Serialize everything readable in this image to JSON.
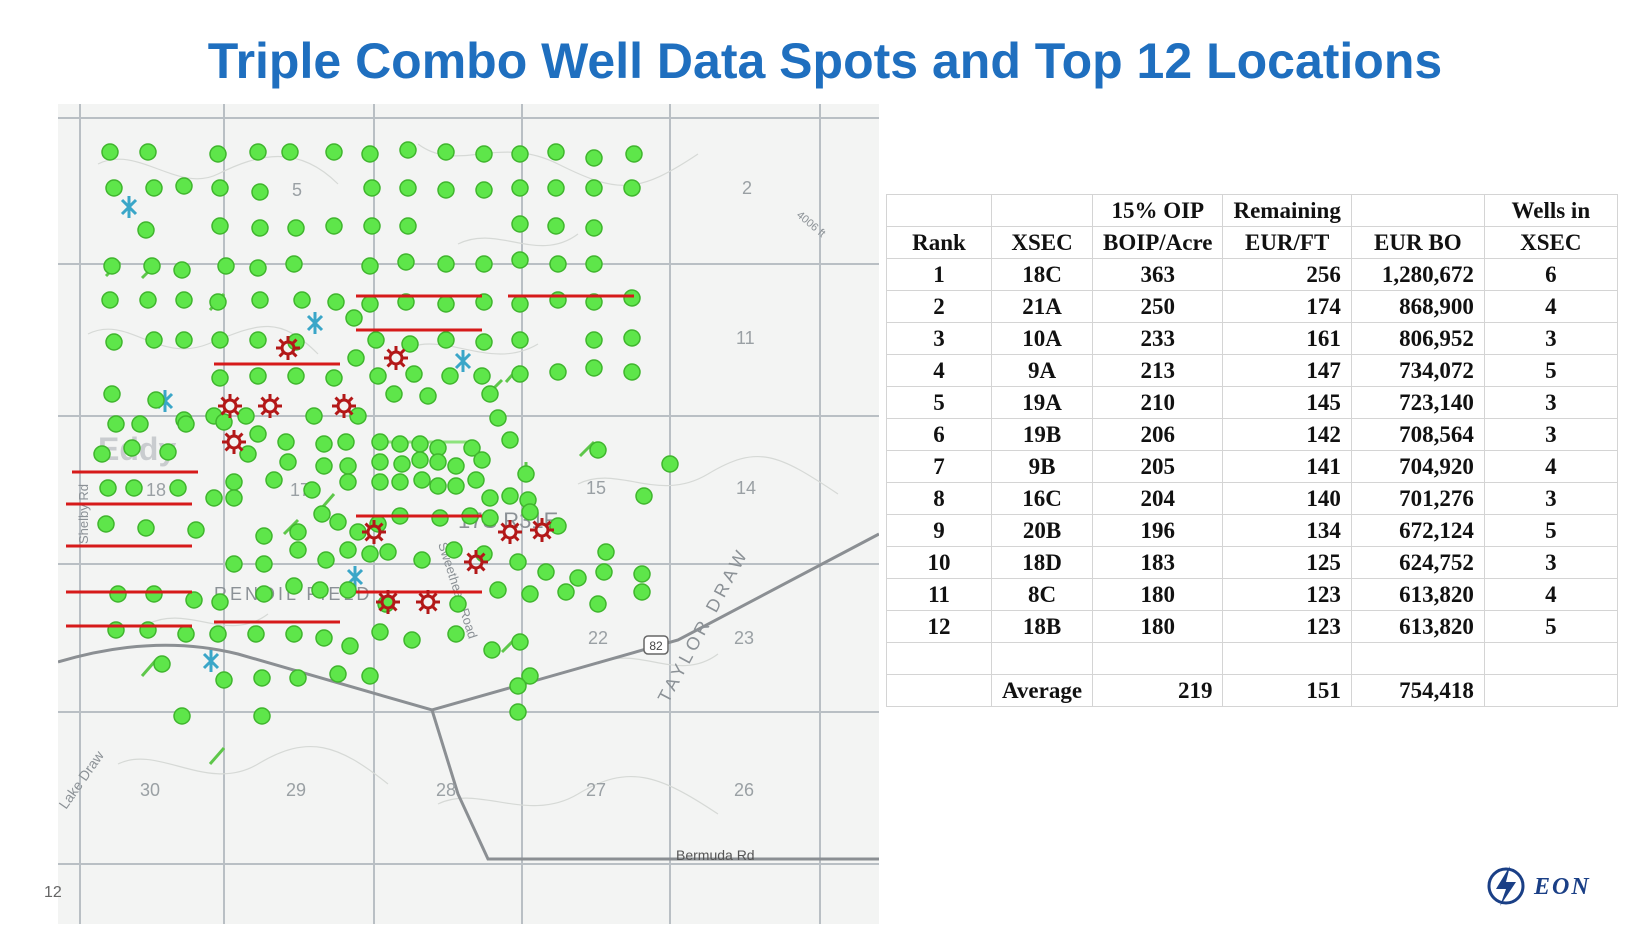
{
  "slide": {
    "title": "Triple Combo Well Data Spots and Top 12 Locations",
    "page_number": "12",
    "logo_text": "EON"
  },
  "colors": {
    "title": "#1f6fbf",
    "well_dot": "#5ee64a",
    "xsec_line": "#d61a1a",
    "top_location": "#b31818",
    "injection_well": "#3aa6c8"
  },
  "map": {
    "labels": {
      "sec5": "5",
      "sec2": "2",
      "sec11": "11",
      "sec14": "14",
      "sec15": "15",
      "sec18": "18",
      "sec17": "17",
      "sec22": "22",
      "sec23": "23",
      "sec30": "30",
      "sec29": "29",
      "sec28": "28",
      "sec27": "27",
      "sec26": "26",
      "township": "17S R31E",
      "eddy": "Eddy",
      "field": "RENOIL FIELD",
      "taylor_draw": "TAYLOR DRAW",
      "lake_draw": "Lake Draw",
      "bermuda": "Bermuda Rd",
      "sweetheart": "Sweetheart Road",
      "shelby": "Shelby Rd",
      "route": "82",
      "road_4006": "4006 ft"
    }
  },
  "table": {
    "header1": [
      "",
      "",
      "15% OIP",
      "Remaining",
      "",
      "Wells in"
    ],
    "header2": [
      "Rank",
      "XSEC",
      "BOIP/Acre",
      "EUR/FT",
      "EUR BO",
      "XSEC"
    ],
    "rows": [
      [
        "1",
        "18C",
        "363",
        "256",
        "1,280,672",
        "6"
      ],
      [
        "2",
        "21A",
        "250",
        "174",
        "868,900",
        "4"
      ],
      [
        "3",
        "10A",
        "233",
        "161",
        "806,952",
        "3"
      ],
      [
        "4",
        "9A",
        "213",
        "147",
        "734,072",
        "5"
      ],
      [
        "5",
        "19A",
        "210",
        "145",
        "723,140",
        "3"
      ],
      [
        "6",
        "19B",
        "206",
        "142",
        "708,564",
        "3"
      ],
      [
        "7",
        "9B",
        "205",
        "141",
        "704,920",
        "4"
      ],
      [
        "8",
        "16C",
        "204",
        "140",
        "701,276",
        "3"
      ],
      [
        "9",
        "20B",
        "196",
        "134",
        "672,124",
        "5"
      ],
      [
        "10",
        "18D",
        "183",
        "125",
        "624,752",
        "3"
      ],
      [
        "11",
        "8C",
        "180",
        "123",
        "613,820",
        "4"
      ],
      [
        "12",
        "18B",
        "180",
        "123",
        "613,820",
        "5"
      ]
    ],
    "average": [
      "",
      "Average",
      "219",
      "151",
      "754,418",
      ""
    ]
  }
}
